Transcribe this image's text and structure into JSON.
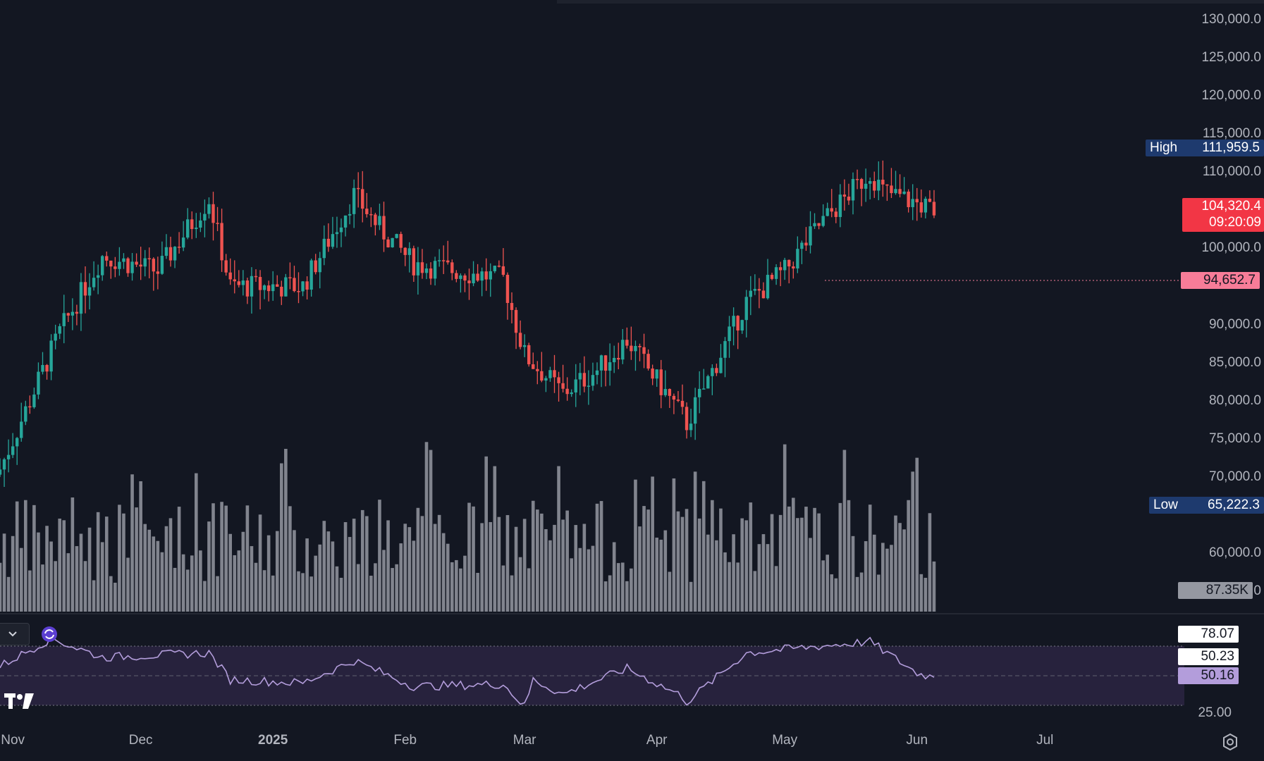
{
  "price_axis": {
    "ticks": [
      "130,000.0",
      "125,000.0",
      "120,000.0",
      "115,000.0",
      "110,000.0",
      "105,000.0",
      "100,000.0",
      "90,000.0",
      "85,000.0",
      "80,000.0",
      "75,000.0",
      "70,000.0",
      "60,000.0",
      "55,000.0"
    ],
    "tick_values": [
      130000,
      125000,
      120000,
      115000,
      110000,
      105000,
      100000,
      90000,
      85000,
      80000,
      75000,
      70000,
      60000,
      55000
    ]
  },
  "tags": {
    "high_label": "High",
    "high_value": "111,959.5",
    "last_price": "104,320.4",
    "countdown": "09:20:09",
    "mark_price": "94,652.7",
    "low_label": "Low",
    "low_value": "65,222.3",
    "volume_value": "87.35K"
  },
  "rsi_panel": {
    "upper_value": "78.07",
    "rsi_ma": "50.23",
    "rsi_value": "50.16",
    "lower_value": "25.00"
  },
  "time_axis": {
    "labels": [
      "Nov",
      "Dec",
      "2025",
      "Feb",
      "Mar",
      "Apr",
      "May",
      "Jun",
      "Jul"
    ]
  },
  "colors": {
    "background": "#131722",
    "up": "#26a69a",
    "down": "#ef5350",
    "volume": "#9598a1",
    "rsi_line": "#b39ddb",
    "rsi_band": "#2a2440",
    "high_low_tag": "#1e3a6e",
    "last_price_tag": "#f23645",
    "mark_tag": "#f77c98",
    "rsi_value_tag": "#b39ddb"
  },
  "icons": {
    "collapse": "chevron-down-icon",
    "rsi_indicator": "indicator-icon",
    "logo": "tradingview-logo",
    "settings": "settings-icon"
  },
  "chart_data": {
    "type": "candlestick",
    "title": "",
    "y_range": [
      52500,
      131300
    ],
    "anchors": [
      {
        "date": "Oct 29",
        "close": 71000
      },
      {
        "date": "Nov 12",
        "close": 89000
      },
      {
        "date": "Nov 22",
        "close": 99000
      },
      {
        "date": "Dec 5",
        "close": 97000
      },
      {
        "date": "Dec 17",
        "close": 106500
      },
      {
        "date": "Dec 22",
        "close": 95000
      },
      {
        "date": "Jan 8",
        "close": 95000
      },
      {
        "date": "Jan 20",
        "close": 107000
      },
      {
        "date": "Jan 27",
        "close": 102000
      },
      {
        "date": "Feb 3",
        "close": 98000
      },
      {
        "date": "Feb 24",
        "close": 96000
      },
      {
        "date": "Mar 1",
        "close": 86000
      },
      {
        "date": "Mar 10",
        "close": 81000
      },
      {
        "date": "Mar 18",
        "close": 84000
      },
      {
        "date": "Mar 25",
        "close": 88000
      },
      {
        "date": "Apr 7",
        "close": 78000
      },
      {
        "date": "Apr 8",
        "close": 77000
      },
      {
        "date": "Apr 22",
        "close": 93000
      },
      {
        "date": "May 1",
        "close": 97000
      },
      {
        "date": "May 9",
        "close": 103000
      },
      {
        "date": "May 21",
        "close": 110000
      },
      {
        "date": "May 24",
        "close": 107500
      },
      {
        "date": "Jun 3",
        "close": 105500
      },
      {
        "date": "Jun 5",
        "close": 104320
      }
    ],
    "high": 111959.5,
    "low": 65222.3,
    "last_close": 104320.4,
    "horizontal_line": 94652.7,
    "volume_last": "87.35K",
    "rsi": {
      "upper": 78.07,
      "lower": 25.0,
      "value": 50.16,
      "ma": 50.23
    },
    "rsi_anchors": [
      {
        "date": "Oct 29",
        "value": 60
      },
      {
        "date": "Nov 10",
        "value": 85
      },
      {
        "date": "Nov 22",
        "value": 68
      },
      {
        "date": "Dec 17",
        "value": 72
      },
      {
        "date": "Dec 22",
        "value": 48
      },
      {
        "date": "Jan 8",
        "value": 45
      },
      {
        "date": "Jan 20",
        "value": 65
      },
      {
        "date": "Feb 3",
        "value": 42
      },
      {
        "date": "Feb 24",
        "value": 44
      },
      {
        "date": "Mar 1",
        "value": 24
      },
      {
        "date": "Mar 3",
        "value": 48
      },
      {
        "date": "Mar 10",
        "value": 35
      },
      {
        "date": "Mar 25",
        "value": 58
      },
      {
        "date": "Apr 7",
        "value": 33
      },
      {
        "date": "Apr 8",
        "value": 28
      },
      {
        "date": "Apr 22",
        "value": 72
      },
      {
        "date": "May 9",
        "value": 78
      },
      {
        "date": "May 21",
        "value": 82
      },
      {
        "date": "Jun 1",
        "value": 54
      },
      {
        "date": "Jun 5",
        "value": 50.16
      }
    ]
  }
}
